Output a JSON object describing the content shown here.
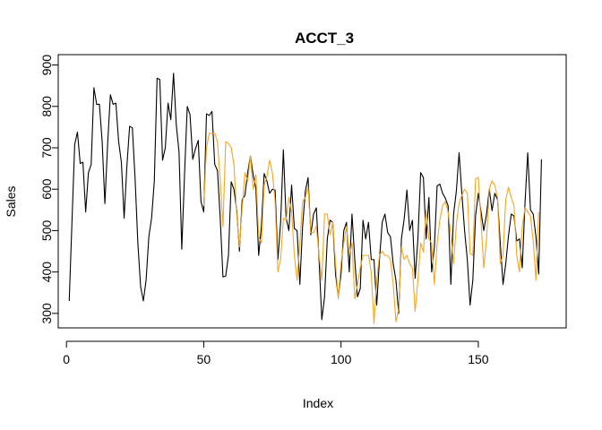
{
  "chart_data": {
    "type": "line",
    "title": "ACCT_3",
    "xlabel": "Index",
    "ylabel": "Sales",
    "xlim": [
      -3,
      182
    ],
    "ylim": [
      265,
      925
    ],
    "xticks": [
      0,
      50,
      100,
      150
    ],
    "yticks": [
      300,
      400,
      500,
      600,
      700,
      800,
      900
    ],
    "grid": false,
    "series": [
      {
        "color": "#000000",
        "x_start": 1,
        "values": [
          330,
          520,
          708,
          738,
          662,
          665,
          545,
          640,
          660,
          845,
          805,
          805,
          715,
          565,
          710,
          828,
          805,
          808,
          715,
          665,
          530,
          655,
          752,
          748,
          625,
          470,
          365,
          330,
          380,
          485,
          530,
          620,
          868,
          865,
          670,
          700,
          808,
          768,
          880,
          755,
          690,
          455,
          635,
          800,
          780,
          672,
          698,
          718,
          570,
          545,
          782,
          778,
          788,
          660,
          645,
          530,
          388,
          390,
          440,
          618,
          600,
          550,
          450,
          575,
          585,
          640,
          680,
          635,
          600,
          440,
          510,
          638,
          620,
          590,
          600,
          598,
          430,
          520,
          695,
          530,
          500,
          610,
          505,
          500,
          370,
          510,
          595,
          628,
          490,
          540,
          555,
          430,
          285,
          340,
          480,
          525,
          520,
          395,
          340,
          395,
          500,
          520,
          400,
          540,
          430,
          340,
          360,
          525,
          480,
          520,
          430,
          430,
          320,
          430,
          520,
          540,
          495,
          485,
          420,
          380,
          300,
          480,
          528,
          598,
          500,
          525,
          385,
          480,
          640,
          628,
          480,
          580,
          400,
          460,
          608,
          612,
          590,
          578,
          560,
          370,
          540,
          595,
          688,
          590,
          500,
          430,
          320,
          380,
          535,
          590,
          545,
          500,
          540,
          600,
          548,
          590,
          575,
          470,
          370,
          420,
          488,
          540,
          535,
          475,
          480,
          410,
          565,
          688,
          550,
          540,
          485,
          395,
          672
        ]
      },
      {
        "color": "#f5a623",
        "x_start": 50,
        "values": [
          560,
          700,
          735,
          735,
          735,
          715,
          620,
          510,
          715,
          710,
          700,
          660,
          540,
          460,
          555,
          640,
          620,
          680,
          600,
          635,
          485,
          470,
          610,
          630,
          670,
          640,
          570,
          400,
          430,
          530,
          525,
          580,
          545,
          440,
          380,
          470,
          570,
          580,
          605,
          495,
          495,
          510,
          440,
          380,
          540,
          540,
          490,
          520,
          420,
          335,
          420,
          470,
          510,
          440,
          470,
          335,
          370,
          410,
          440,
          440,
          440,
          400,
          275,
          380,
          440,
          450,
          440,
          440,
          430,
          370,
          280,
          310,
          460,
          430,
          440,
          420,
          410,
          305,
          380,
          470,
          448,
          550,
          480,
          470,
          370,
          470,
          525,
          560,
          570,
          545,
          490,
          420,
          515,
          565,
          585,
          600,
          590,
          445,
          440,
          625,
          628,
          520,
          410,
          480,
          600,
          620,
          610,
          580,
          420,
          440,
          575,
          605,
          580,
          560,
          440,
          400,
          510,
          555,
          545,
          535,
          475,
          380,
          545
        ]
      }
    ]
  }
}
